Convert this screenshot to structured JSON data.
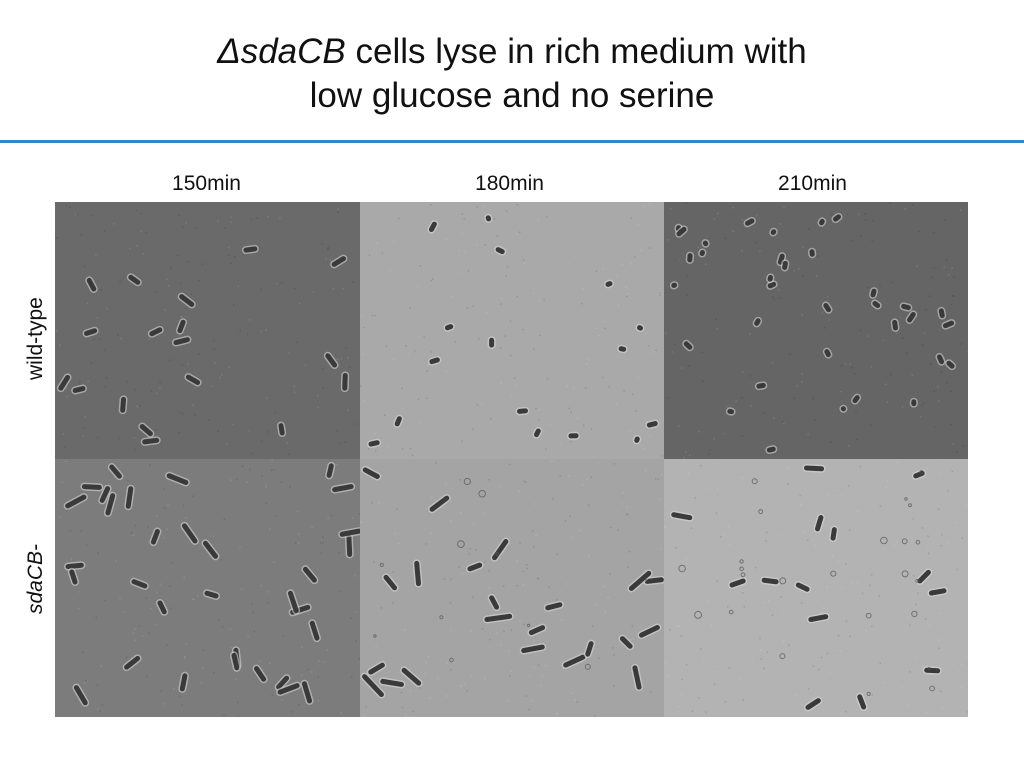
{
  "title": {
    "italic_part": "ΔsdaCB",
    "line1_rest": " cells lyse in rich medium with",
    "line2": "low glucose and no serine"
  },
  "columns": [
    "150min",
    "180min",
    "210min"
  ],
  "rows": [
    {
      "label": "wild-type",
      "italic": false
    },
    {
      "label": "sdaCB-",
      "italic": true
    }
  ],
  "colors": {
    "rule": "#2f86c9",
    "panels": [
      [
        "#6a6a6a",
        "#a9a9a9",
        "#656565"
      ],
      [
        "#7c7c7c",
        "#a4a4a4",
        "#b3b3b3"
      ]
    ],
    "cell": "#3a3a3a",
    "cell_halo": "#d8d8d8"
  },
  "panel_descriptions": [
    [
      "phase-contrast-cells",
      "phase-contrast-cells",
      "phase-contrast-cells"
    ],
    [
      "phase-contrast-cells",
      "phase-contrast-cells",
      "lysed-cells"
    ]
  ]
}
